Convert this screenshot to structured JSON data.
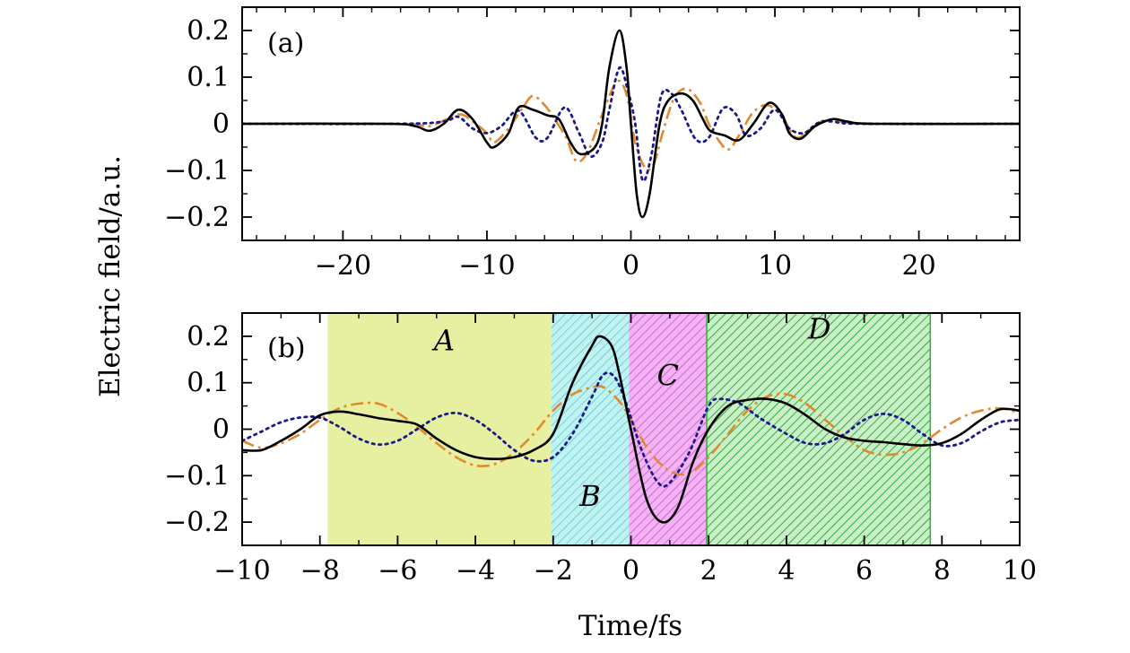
{
  "figure": {
    "ylabel": "Electric field/a.u.",
    "xlabel": "Time/fs"
  },
  "colors": {
    "solid": "#000000",
    "dotted": "#1a1a8c",
    "dashed": "#e08a30",
    "region_A": "#e6f0a0",
    "region_B": "#bff2f2",
    "region_C": "#f3b2f3",
    "region_D": "#2ecc2e"
  },
  "chart_data": [
    {
      "type": "line",
      "panel": "(a)",
      "xlim": [
        -27,
        27
      ],
      "ylim": [
        -0.25,
        0.25
      ],
      "xticks": [
        -20,
        -10,
        0,
        10,
        20
      ],
      "xtick_labels": [
        "−20",
        "−10",
        "0",
        "10",
        "20"
      ],
      "yticks": [
        -0.2,
        -0.1,
        0,
        0.1,
        0.2
      ],
      "ytick_labels": [
        "−0.2",
        "−0.1",
        "0",
        "0.1",
        "0.2"
      ],
      "series": [
        {
          "style": "solid",
          "points": [
            [
              -27,
              0
            ],
            [
              -17,
              0
            ],
            [
              -15,
              -0.005
            ],
            [
              -14,
              -0.015
            ],
            [
              -13,
              0
            ],
            [
              -12,
              0.03
            ],
            [
              -11,
              0.01
            ],
            [
              -10,
              -0.04
            ],
            [
              -9.5,
              -0.05
            ],
            [
              -8.5,
              -0.02
            ],
            [
              -7.8,
              0.035
            ],
            [
              -6.8,
              0.03
            ],
            [
              -5.8,
              0.018
            ],
            [
              -5,
              0.01
            ],
            [
              -4.2,
              -0.04
            ],
            [
              -3.5,
              -0.065
            ],
            [
              -2.5,
              -0.05
            ],
            [
              -2,
              0
            ],
            [
              -1.5,
              0.12
            ],
            [
              -0.8,
              0.2
            ],
            [
              -0.3,
              0.12
            ],
            [
              0,
              0
            ],
            [
              0.4,
              -0.15
            ],
            [
              0.8,
              -0.2
            ],
            [
              1.3,
              -0.15
            ],
            [
              2,
              0
            ],
            [
              2.6,
              0.05
            ],
            [
              3.5,
              0.065
            ],
            [
              4.3,
              0.05
            ],
            [
              5,
              0.01
            ],
            [
              5.5,
              -0.015
            ],
            [
              6.5,
              -0.025
            ],
            [
              7.5,
              -0.035
            ],
            [
              8.5,
              0
            ],
            [
              9.6,
              0.045
            ],
            [
              10.5,
              0.02
            ],
            [
              11,
              -0.02
            ],
            [
              11.8,
              -0.032
            ],
            [
              12.8,
              -0.005
            ],
            [
              14,
              0.01
            ],
            [
              15,
              0.005
            ],
            [
              17,
              0
            ],
            [
              27,
              0
            ]
          ]
        },
        {
          "style": "dotted",
          "points": [
            [
              -27,
              0
            ],
            [
              -16,
              0
            ],
            [
              -13,
              0.005
            ],
            [
              -12,
              0.015
            ],
            [
              -11,
              -0.01
            ],
            [
              -10,
              -0.02
            ],
            [
              -9,
              -0.005
            ],
            [
              -7.8,
              0.028
            ],
            [
              -6.6,
              -0.03
            ],
            [
              -5.8,
              -0.03
            ],
            [
              -4.6,
              0.035
            ],
            [
              -3.6,
              -0.02
            ],
            [
              -2.8,
              -0.07
            ],
            [
              -2,
              -0.04
            ],
            [
              -1.5,
              0.03
            ],
            [
              -0.8,
              0.12
            ],
            [
              -0.2,
              0.07
            ],
            [
              0.3,
              0
            ],
            [
              0.8,
              -0.12
            ],
            [
              1.4,
              -0.07
            ],
            [
              2.1,
              0.06
            ],
            [
              2.8,
              0.065
            ],
            [
              3.5,
              0.03
            ],
            [
              4.5,
              -0.033
            ],
            [
              5.4,
              -0.03
            ],
            [
              6.4,
              0.033
            ],
            [
              7.3,
              0.02
            ],
            [
              8,
              -0.025
            ],
            [
              9,
              -0.01
            ],
            [
              10,
              0.03
            ],
            [
              11,
              -0.01
            ],
            [
              12,
              -0.02
            ],
            [
              13,
              0.002
            ],
            [
              14,
              0.005
            ],
            [
              16,
              0
            ],
            [
              27,
              0
            ]
          ]
        },
        {
          "style": "dashed",
          "points": [
            [
              -27,
              0
            ],
            [
              -16,
              0
            ],
            [
              -14,
              -0.005
            ],
            [
              -12,
              0.02
            ],
            [
              -11,
              0.005
            ],
            [
              -10,
              -0.02
            ],
            [
              -9.5,
              -0.04
            ],
            [
              -8.5,
              -0.01
            ],
            [
              -7.5,
              0.035
            ],
            [
              -6.8,
              0.06
            ],
            [
              -6,
              0.04
            ],
            [
              -5.5,
              0.02
            ],
            [
              -4.5,
              -0.03
            ],
            [
              -3.8,
              -0.08
            ],
            [
              -3,
              -0.06
            ],
            [
              -2,
              0.02
            ],
            [
              -1.2,
              0.08
            ],
            [
              -0.7,
              0.09
            ],
            [
              -0.2,
              0.05
            ],
            [
              0.3,
              -0.04
            ],
            [
              1,
              -0.095
            ],
            [
              1.6,
              -0.085
            ],
            [
              2.2,
              -0.02
            ],
            [
              3,
              0.055
            ],
            [
              3.9,
              0.075
            ],
            [
              4.8,
              0.045
            ],
            [
              5.4,
              0
            ],
            [
              6.2,
              -0.04
            ],
            [
              6.8,
              -0.055
            ],
            [
              7.6,
              -0.02
            ],
            [
              8.5,
              0.025
            ],
            [
              9.5,
              0.04
            ],
            [
              10.5,
              0.015
            ],
            [
              11.5,
              -0.03
            ],
            [
              12.5,
              -0.01
            ],
            [
              13.5,
              0.008
            ],
            [
              15,
              0.003
            ],
            [
              17,
              0
            ],
            [
              27,
              0
            ]
          ]
        }
      ]
    },
    {
      "type": "line",
      "panel": "(b)",
      "xlim": [
        -10,
        10
      ],
      "ylim": [
        -0.25,
        0.25
      ],
      "xticks": [
        -10,
        -8,
        -6,
        -4,
        -2,
        0,
        2,
        4,
        6,
        8,
        10
      ],
      "xtick_labels": [
        "−10",
        "−8",
        "−6",
        "−4",
        "−2",
        "0",
        "2",
        "4",
        "6",
        "8",
        "10"
      ],
      "yticks": [
        -0.2,
        -0.1,
        0,
        0.1,
        0.2
      ],
      "ytick_labels": [
        "−0.2",
        "−0.1",
        "0",
        "0.1",
        "0.2"
      ],
      "regions": [
        {
          "label": "A",
          "from": -7.8,
          "to": -2.05,
          "fill": "region_A",
          "hatch": false
        },
        {
          "label": "B",
          "from": -2.05,
          "to": -0.05,
          "fill": "region_B",
          "hatch": true
        },
        {
          "label": "C",
          "from": -0.05,
          "to": 1.95,
          "fill": "region_C",
          "hatch": true
        },
        {
          "label": "D",
          "from": 1.95,
          "to": 7.7,
          "fill": "region_D",
          "hatch": true
        }
      ],
      "series": [
        {
          "style": "solid",
          "points": [
            [
              -10,
              -0.045
            ],
            [
              -9.5,
              -0.045
            ],
            [
              -9,
              -0.025
            ],
            [
              -8.5,
              0
            ],
            [
              -8,
              0.03
            ],
            [
              -7.5,
              0.038
            ],
            [
              -7,
              0.032
            ],
            [
              -6.5,
              0.024
            ],
            [
              -6,
              0.018
            ],
            [
              -5.5,
              0.01
            ],
            [
              -5,
              -0.02
            ],
            [
              -4.5,
              -0.045
            ],
            [
              -4,
              -0.06
            ],
            [
              -3.5,
              -0.064
            ],
            [
              -3,
              -0.06
            ],
            [
              -2.5,
              -0.045
            ],
            [
              -2,
              -0.01
            ],
            [
              -1.5,
              0.1
            ],
            [
              -1,
              0.18
            ],
            [
              -0.8,
              0.2
            ],
            [
              -0.5,
              0.18
            ],
            [
              -0.3,
              0.12
            ],
            [
              0,
              0.0
            ],
            [
              0.4,
              -0.15
            ],
            [
              0.8,
              -0.2
            ],
            [
              1.2,
              -0.17
            ],
            [
              1.6,
              -0.07
            ],
            [
              2,
              0.0
            ],
            [
              2.5,
              0.05
            ],
            [
              3,
              0.063
            ],
            [
              3.5,
              0.065
            ],
            [
              4,
              0.055
            ],
            [
              4.5,
              0.03
            ],
            [
              5,
              0.0
            ],
            [
              5.5,
              -0.018
            ],
            [
              6,
              -0.025
            ],
            [
              6.5,
              -0.028
            ],
            [
              7,
              -0.032
            ],
            [
              7.5,
              -0.035
            ],
            [
              8,
              -0.03
            ],
            [
              8.5,
              -0.01
            ],
            [
              9,
              0.02
            ],
            [
              9.5,
              0.043
            ],
            [
              10,
              0.04
            ]
          ]
        },
        {
          "style": "dotted",
          "points": [
            [
              -10,
              -0.025
            ],
            [
              -9.5,
              -0.005
            ],
            [
              -9,
              0.015
            ],
            [
              -8.5,
              0.025
            ],
            [
              -8,
              0.025
            ],
            [
              -7.5,
              0.005
            ],
            [
              -7,
              -0.02
            ],
            [
              -6.5,
              -0.033
            ],
            [
              -6,
              -0.025
            ],
            [
              -5.5,
              0.0
            ],
            [
              -5,
              0.025
            ],
            [
              -4.5,
              0.035
            ],
            [
              -4,
              0.02
            ],
            [
              -3.5,
              -0.01
            ],
            [
              -3,
              -0.045
            ],
            [
              -2.5,
              -0.068
            ],
            [
              -2,
              -0.06
            ],
            [
              -1.5,
              -0.01
            ],
            [
              -1,
              0.07
            ],
            [
              -0.7,
              0.118
            ],
            [
              -0.4,
              0.11
            ],
            [
              -0.1,
              0.05
            ],
            [
              0.3,
              -0.05
            ],
            [
              0.7,
              -0.115
            ],
            [
              1,
              -0.115
            ],
            [
              1.5,
              -0.05
            ],
            [
              2,
              0.05
            ],
            [
              2.3,
              0.065
            ],
            [
              2.8,
              0.055
            ],
            [
              3.3,
              0.025
            ],
            [
              4,
              -0.01
            ],
            [
              4.5,
              -0.03
            ],
            [
              5,
              -0.03
            ],
            [
              5.5,
              -0.01
            ],
            [
              6,
              0.02
            ],
            [
              6.5,
              0.033
            ],
            [
              7,
              0.02
            ],
            [
              7.5,
              -0.01
            ],
            [
              8,
              -0.035
            ],
            [
              8.5,
              -0.03
            ],
            [
              9,
              -0.005
            ],
            [
              9.5,
              0.015
            ],
            [
              10,
              0.02
            ]
          ]
        },
        {
          "style": "dashed",
          "points": [
            [
              -10,
              -0.025
            ],
            [
              -9.5,
              -0.04
            ],
            [
              -9,
              -0.03
            ],
            [
              -8.5,
              -0.01
            ],
            [
              -8,
              0.02
            ],
            [
              -7.5,
              0.045
            ],
            [
              -7,
              0.055
            ],
            [
              -6.5,
              0.055
            ],
            [
              -6,
              0.035
            ],
            [
              -5.5,
              0.005
            ],
            [
              -5,
              -0.03
            ],
            [
              -4.5,
              -0.06
            ],
            [
              -4,
              -0.078
            ],
            [
              -3.5,
              -0.075
            ],
            [
              -3,
              -0.05
            ],
            [
              -2.5,
              -0.01
            ],
            [
              -2,
              0.04
            ],
            [
              -1.5,
              0.075
            ],
            [
              -1,
              0.09
            ],
            [
              -0.7,
              0.09
            ],
            [
              -0.3,
              0.06
            ],
            [
              0,
              0.02
            ],
            [
              0.5,
              -0.05
            ],
            [
              1,
              -0.09
            ],
            [
              1.5,
              -0.095
            ],
            [
              2,
              -0.06
            ],
            [
              2.5,
              -0.01
            ],
            [
              3,
              0.04
            ],
            [
              3.5,
              0.07
            ],
            [
              4,
              0.075
            ],
            [
              4.5,
              0.055
            ],
            [
              5,
              0.02
            ],
            [
              5.5,
              -0.015
            ],
            [
              6,
              -0.045
            ],
            [
              6.5,
              -0.055
            ],
            [
              7,
              -0.05
            ],
            [
              7.5,
              -0.03
            ],
            [
              8,
              0.0
            ],
            [
              8.5,
              0.025
            ],
            [
              9,
              0.04
            ],
            [
              9.5,
              0.045
            ],
            [
              10,
              0.035
            ]
          ]
        }
      ]
    }
  ]
}
